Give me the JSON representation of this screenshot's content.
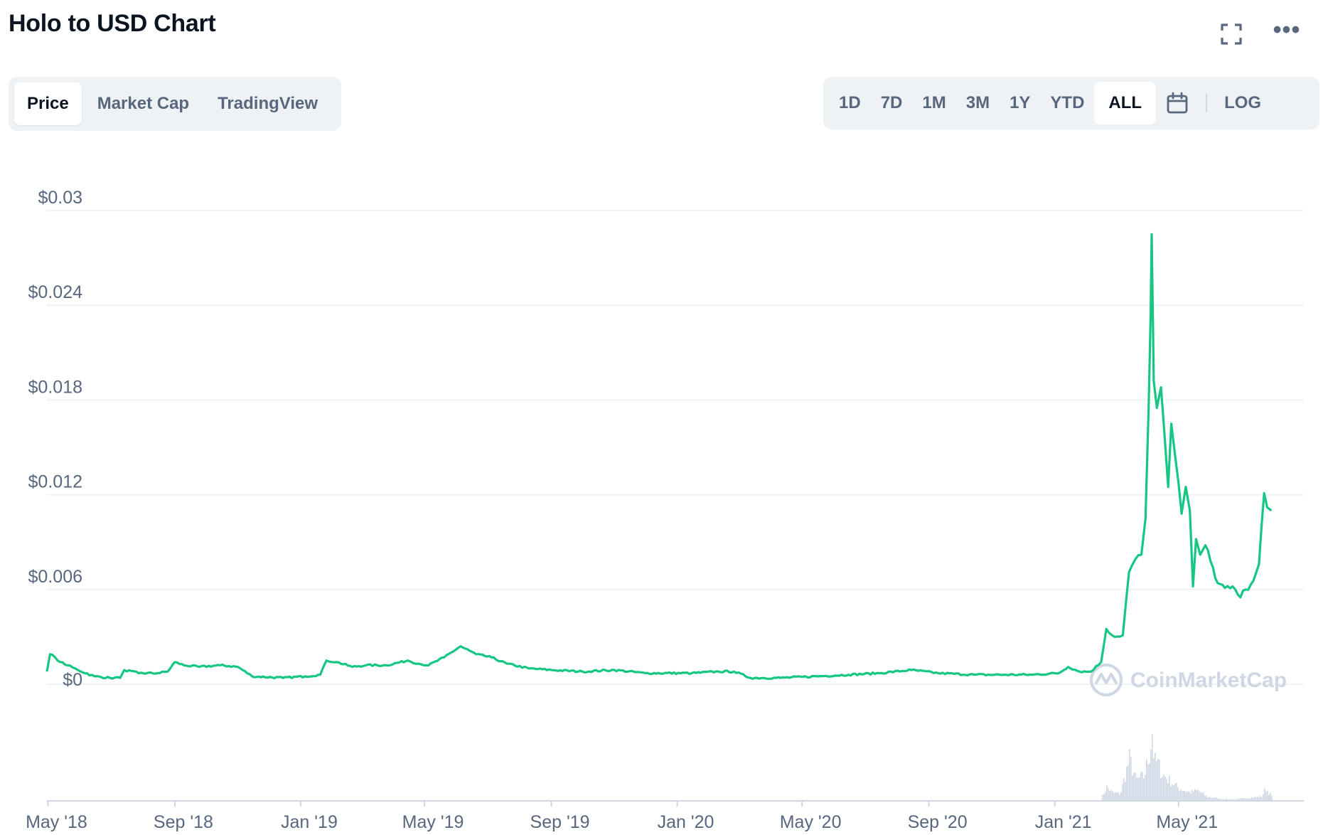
{
  "header": {
    "title": "Holo to USD Chart",
    "fullscreen_icon": "expand-icon",
    "more_icon": "more-horizontal-icon",
    "more_glyph": "•••"
  },
  "tabs": [
    {
      "label": "Price",
      "active": true
    },
    {
      "label": "Market Cap",
      "active": false
    },
    {
      "label": "TradingView",
      "active": false
    }
  ],
  "ranges": [
    {
      "label": "1D",
      "active": false
    },
    {
      "label": "7D",
      "active": false
    },
    {
      "label": "1M",
      "active": false
    },
    {
      "label": "3M",
      "active": false
    },
    {
      "label": "1Y",
      "active": false
    },
    {
      "label": "YTD",
      "active": false
    },
    {
      "label": "ALL",
      "active": true
    }
  ],
  "calendar_icon": "calendar-icon",
  "log_label": "LOG",
  "watermark": "CoinMarketCap",
  "colors": {
    "line": "#16c784",
    "volume": "#cfd6e4",
    "grid": "#eff2f5",
    "axis_text": "#58667e"
  },
  "chart_data": {
    "type": "line",
    "title": "Holo to USD Chart",
    "x_ticks": [
      "May '18",
      "Sep '18",
      "Jan '19",
      "May '19",
      "Sep '19",
      "Jan '20",
      "May '20",
      "Sep '20",
      "Jan '21",
      "May '21"
    ],
    "y_ticks": [
      "$0",
      "$0.006",
      "$0.012",
      "$0.018",
      "$0.024",
      "$0.03"
    ],
    "y_tick_values": [
      0,
      0.006,
      0.012,
      0.018,
      0.024,
      0.03
    ],
    "ylim": [
      0,
      0.03
    ],
    "x_range": [
      "2018-04-30",
      "2021-07-01"
    ],
    "grid": true,
    "series": [
      {
        "values": [
          [
            "2018-04-30",
            0.0008
          ],
          [
            "2018-05-03",
            0.0019
          ],
          [
            "2018-05-08",
            0.0017
          ],
          [
            "2018-05-13",
            0.0014
          ],
          [
            "2018-05-20",
            0.0012
          ],
          [
            "2018-05-30",
            0.0009
          ],
          [
            "2018-06-15",
            0.0005
          ],
          [
            "2018-06-30",
            0.0004
          ],
          [
            "2018-07-10",
            0.0004
          ],
          [
            "2018-07-14",
            0.0009
          ],
          [
            "2018-07-28",
            0.0007
          ],
          [
            "2018-08-15",
            0.0007
          ],
          [
            "2018-08-25",
            0.0008
          ],
          [
            "2018-09-01",
            0.0014
          ],
          [
            "2018-09-10",
            0.0012
          ],
          [
            "2018-09-25",
            0.0011
          ],
          [
            "2018-10-15",
            0.0012
          ],
          [
            "2018-11-01",
            0.0011
          ],
          [
            "2018-11-15",
            0.0005
          ],
          [
            "2018-12-15",
            0.0004
          ],
          [
            "2019-01-05",
            0.0005
          ],
          [
            "2019-01-20",
            0.0006
          ],
          [
            "2019-01-26",
            0.0015
          ],
          [
            "2019-02-05",
            0.0014
          ],
          [
            "2019-02-20",
            0.0011
          ],
          [
            "2019-03-05",
            0.0012
          ],
          [
            "2019-03-25",
            0.0012
          ],
          [
            "2019-04-15",
            0.0015
          ],
          [
            "2019-04-25",
            0.0013
          ],
          [
            "2019-05-05",
            0.0012
          ],
          [
            "2019-05-20",
            0.0017
          ],
          [
            "2019-06-05",
            0.0024
          ],
          [
            "2019-06-20",
            0.0019
          ],
          [
            "2019-07-05",
            0.0017
          ],
          [
            "2019-07-20",
            0.0013
          ],
          [
            "2019-08-10",
            0.001
          ],
          [
            "2019-09-01",
            0.0009
          ],
          [
            "2019-10-01",
            0.0008
          ],
          [
            "2019-11-01",
            0.0009
          ],
          [
            "2019-12-01",
            0.0007
          ],
          [
            "2020-01-15",
            0.0007
          ],
          [
            "2020-02-10",
            0.0008
          ],
          [
            "2020-02-25",
            0.0008
          ],
          [
            "2020-03-12",
            0.0004
          ],
          [
            "2020-04-10",
            0.0004
          ],
          [
            "2020-05-15",
            0.0005
          ],
          [
            "2020-06-15",
            0.0006
          ],
          [
            "2020-07-15",
            0.0007
          ],
          [
            "2020-08-15",
            0.0009
          ],
          [
            "2020-09-10",
            0.0007
          ],
          [
            "2020-10-15",
            0.0006
          ],
          [
            "2020-11-15",
            0.0006
          ],
          [
            "2020-12-10",
            0.0006
          ],
          [
            "2021-01-05",
            0.0007
          ],
          [
            "2021-01-14",
            0.0011
          ],
          [
            "2021-01-25",
            0.0008
          ],
          [
            "2021-02-05",
            0.0008
          ],
          [
            "2021-02-15",
            0.0014
          ],
          [
            "2021-02-20",
            0.0035
          ],
          [
            "2021-02-28",
            0.003
          ],
          [
            "2021-03-08",
            0.0031
          ],
          [
            "2021-03-14",
            0.0071
          ],
          [
            "2021-03-20",
            0.0079
          ],
          [
            "2021-03-26",
            0.0082
          ],
          [
            "2021-03-30",
            0.0105
          ],
          [
            "2021-04-02",
            0.0175
          ],
          [
            "2021-04-04",
            0.0235
          ],
          [
            "2021-04-05",
            0.0285
          ],
          [
            "2021-04-07",
            0.0192
          ],
          [
            "2021-04-10",
            0.0175
          ],
          [
            "2021-04-14",
            0.0188
          ],
          [
            "2021-04-17",
            0.0162
          ],
          [
            "2021-04-21",
            0.0125
          ],
          [
            "2021-04-24",
            0.0165
          ],
          [
            "2021-04-28",
            0.0143
          ],
          [
            "2021-05-04",
            0.0108
          ],
          [
            "2021-05-08",
            0.0125
          ],
          [
            "2021-05-12",
            0.011
          ],
          [
            "2021-05-15",
            0.0062
          ],
          [
            "2021-05-18",
            0.0092
          ],
          [
            "2021-05-22",
            0.0082
          ],
          [
            "2021-05-27",
            0.0088
          ],
          [
            "2021-06-01",
            0.0078
          ],
          [
            "2021-06-08",
            0.0064
          ],
          [
            "2021-06-15",
            0.0061
          ],
          [
            "2021-06-25",
            0.006
          ],
          [
            "2021-06-30",
            0.0055
          ],
          [
            "2021-07-05",
            0.006
          ],
          [
            "2021-07-10",
            0.0063
          ],
          [
            "2021-07-18",
            0.0076
          ],
          [
            "2021-07-23",
            0.0121
          ],
          [
            "2021-07-26",
            0.0112
          ],
          [
            "2021-07-30",
            0.011
          ]
        ]
      }
    ],
    "volume": [
      [
        "2021-02-15",
        0.05
      ],
      [
        "2021-02-20",
        0.2
      ],
      [
        "2021-02-25",
        0.12
      ],
      [
        "2021-03-05",
        0.1
      ],
      [
        "2021-03-14",
        0.6
      ],
      [
        "2021-03-20",
        0.3
      ],
      [
        "2021-03-28",
        0.35
      ],
      [
        "2021-04-02",
        0.65
      ],
      [
        "2021-04-05",
        1.0
      ],
      [
        "2021-04-07",
        0.55
      ],
      [
        "2021-04-10",
        0.55
      ],
      [
        "2021-04-15",
        0.38
      ],
      [
        "2021-04-21",
        0.3
      ],
      [
        "2021-05-01",
        0.18
      ],
      [
        "2021-05-12",
        0.12
      ],
      [
        "2021-05-19",
        0.15
      ],
      [
        "2021-05-28",
        0.06
      ],
      [
        "2021-06-10",
        0.03
      ],
      [
        "2021-06-25",
        0.02
      ],
      [
        "2021-07-10",
        0.05
      ],
      [
        "2021-07-20",
        0.06
      ],
      [
        "2021-07-24",
        0.18
      ],
      [
        "2021-07-30",
        0.06
      ]
    ]
  }
}
